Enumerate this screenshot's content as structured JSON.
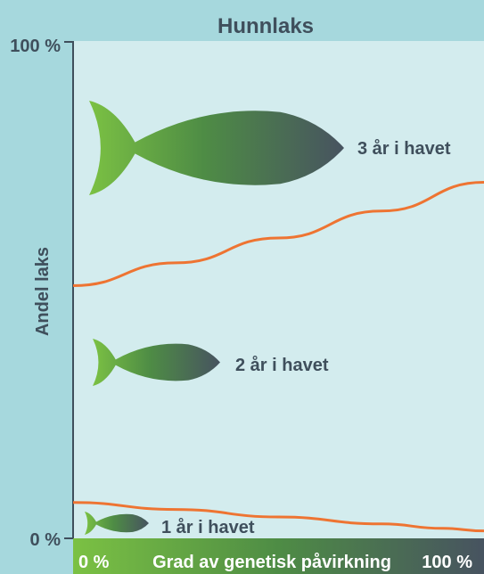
{
  "chart_data": {
    "type": "area",
    "title": "Hunnlaks",
    "ylabel": "Andel laks",
    "xlabel": "Grad av genetisk påvirkning",
    "x_ticks": [
      "0 %",
      "100 %"
    ],
    "y_ticks": [
      "0 %",
      "100 %"
    ],
    "xlim": [
      0,
      100
    ],
    "ylim": [
      0,
      100
    ],
    "regions": [
      {
        "name": "1 år i havet"
      },
      {
        "name": "2 år i havet"
      },
      {
        "name": "3 år i havet"
      }
    ],
    "boundaries": [
      {
        "between": [
          "1 år i havet",
          "2 år i havet"
        ],
        "x": [
          0,
          25,
          50,
          75,
          90,
          100
        ],
        "y": [
          7.2,
          5.8,
          4.3,
          2.9,
          2.0,
          1.5
        ]
      },
      {
        "between": [
          "2 år i havet",
          "3 år i havet"
        ],
        "x": [
          0,
          25,
          50,
          75,
          100
        ],
        "y": [
          50.8,
          55.4,
          60.4,
          65.8,
          71.6
        ]
      }
    ],
    "colors": {
      "background": "#a6d8dd",
      "plot_area": "#d3ecee",
      "boundary_line": "#ee7432",
      "text": "#3f4f5c",
      "gradient_start": "#7bc143",
      "gradient_end": "#475360"
    }
  }
}
